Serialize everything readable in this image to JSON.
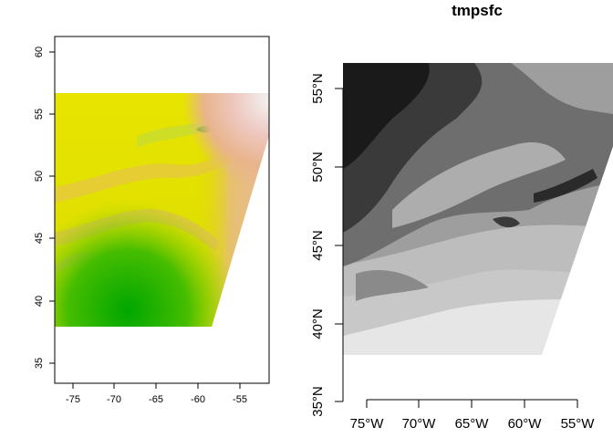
{
  "left_map": {
    "x_ticks": [
      "-75",
      "-70",
      "-65",
      "-60",
      "-55"
    ],
    "y_ticks": [
      "35",
      "40",
      "45",
      "50",
      "55",
      "60"
    ],
    "colors": {
      "low": "#00a600",
      "mid": "#e6e600",
      "high": "#f2f2f2",
      "tan": "#e8b48c"
    }
  },
  "right_map": {
    "title": "tmpsfc",
    "x_ticks": [
      "75°W",
      "70°W",
      "65°W",
      "60°W",
      "55°W"
    ],
    "y_ticks": [
      "35°N",
      "40°N",
      "45°N",
      "50°N",
      "55°N"
    ],
    "colors": {
      "dark": "#1a1a1a",
      "mid": "#8c8c8c",
      "light": "#d9d9d9",
      "lightest": "#ebebeb"
    }
  }
}
